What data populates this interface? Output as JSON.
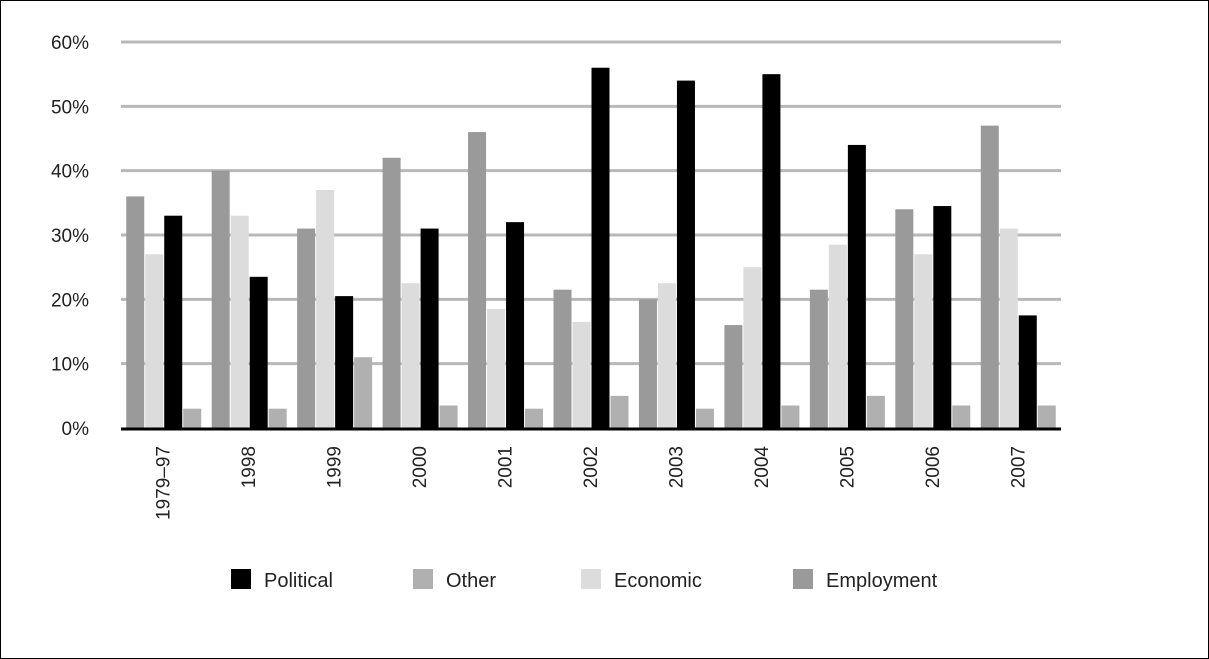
{
  "chart_data": {
    "type": "bar",
    "title": "",
    "xlabel": "",
    "ylabel": "",
    "ylim": [
      0,
      60
    ],
    "yticks": [
      0,
      10,
      20,
      30,
      40,
      50,
      60
    ],
    "ytick_labels": [
      "0%",
      "10%",
      "20%",
      "30%",
      "40%",
      "50%",
      "60%"
    ],
    "grid": true,
    "legend_position": "bottom",
    "categories": [
      "1979–97",
      "1998",
      "1999",
      "2000",
      "2001",
      "2002",
      "2003",
      "2004",
      "2005",
      "2006",
      "2007"
    ],
    "series": [
      {
        "name": "Employment",
        "color": "#9a9a9a",
        "values": [
          36,
          40,
          31,
          42,
          46,
          21.5,
          20,
          16,
          21.5,
          34,
          47
        ]
      },
      {
        "name": "Economic",
        "color": "#dcdcdc",
        "values": [
          27,
          33,
          37,
          22.5,
          18.5,
          16.5,
          22.5,
          25,
          28.5,
          27,
          31
        ]
      },
      {
        "name": "Political",
        "color": "#000000",
        "values": [
          33,
          23.5,
          20.5,
          31,
          32,
          56,
          54,
          55,
          44,
          34.5,
          17.5
        ]
      },
      {
        "name": "Other",
        "color": "#b0b0b0",
        "values": [
          3,
          3,
          11,
          3.5,
          3,
          5,
          3,
          3.5,
          5,
          3.5,
          3.5
        ]
      }
    ],
    "legend_order": [
      "Political",
      "Other",
      "Economic",
      "Employment"
    ],
    "gridline_color": "#b8b8b8",
    "axis_color": "#000000"
  }
}
